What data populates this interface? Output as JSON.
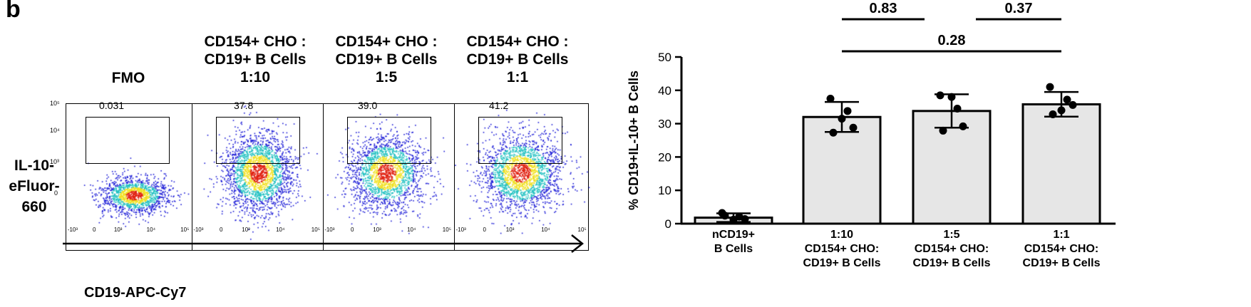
{
  "panel_label": "b",
  "flow": {
    "column_titles": [
      [
        "FMO"
      ],
      [
        "CD154+ CHO :",
        "CD19+ B Cells",
        "1:10"
      ],
      [
        "CD154+ CHO :",
        "CD19+ B Cells",
        "1:5"
      ],
      [
        "CD154+ CHO :",
        "CD19+ B Cells",
        "1:1"
      ]
    ],
    "gate_percentages": [
      "0.031",
      "37.8",
      "39.0",
      "41.2"
    ],
    "y_axis_label": [
      "IL-10-",
      "eFluor-",
      "660"
    ],
    "x_axis_label": "CD19-APC-Cy7",
    "y_tick_labels": [
      "10⁵",
      "10⁴",
      "10³",
      "0"
    ],
    "x_tick_labels": [
      "-10³",
      "0",
      "10³",
      "10⁴",
      "10⁵"
    ],
    "colors": {
      "low": "#1a1ad6",
      "mid": "#20c0c0",
      "high": "#f0e020",
      "peak": "#e02010"
    }
  },
  "chart_data": {
    "type": "bar",
    "categories": [
      [
        "nCD19+",
        "B Cells"
      ],
      [
        "1:10",
        "CD154+ CHO:",
        "CD19+ B Cells"
      ],
      [
        "1:5",
        "CD154+ CHO:",
        "CD19+ B Cells"
      ],
      [
        "1:1",
        "CD154+ CHO:",
        "CD19+ B Cells"
      ]
    ],
    "means": [
      1.8,
      32,
      33.8,
      35.8
    ],
    "sd": [
      1.3,
      4.5,
      5.0,
      3.7
    ],
    "points": [
      [
        3.2,
        2.1,
        1.4,
        2.4,
        1.2
      ],
      [
        37.5,
        33.8,
        28.8,
        27.3,
        31.5
      ],
      [
        38.5,
        34.5,
        29.2,
        27.9,
        38.0
      ],
      [
        41.0,
        37.2,
        35.6,
        32.8,
        34.0
      ]
    ],
    "ylabel": "% CD19+IL-10+ B Cells",
    "ylim": [
      0,
      50
    ],
    "yticks": [
      0,
      10,
      20,
      30,
      40,
      50
    ],
    "bar_color": "#e6e6e6",
    "significance": [
      {
        "from": 1,
        "to": 2,
        "label": "0.83"
      },
      {
        "from": 2,
        "to": 3,
        "label": "0.37"
      },
      {
        "from": 1,
        "to": 3,
        "label": "0.28"
      }
    ]
  }
}
